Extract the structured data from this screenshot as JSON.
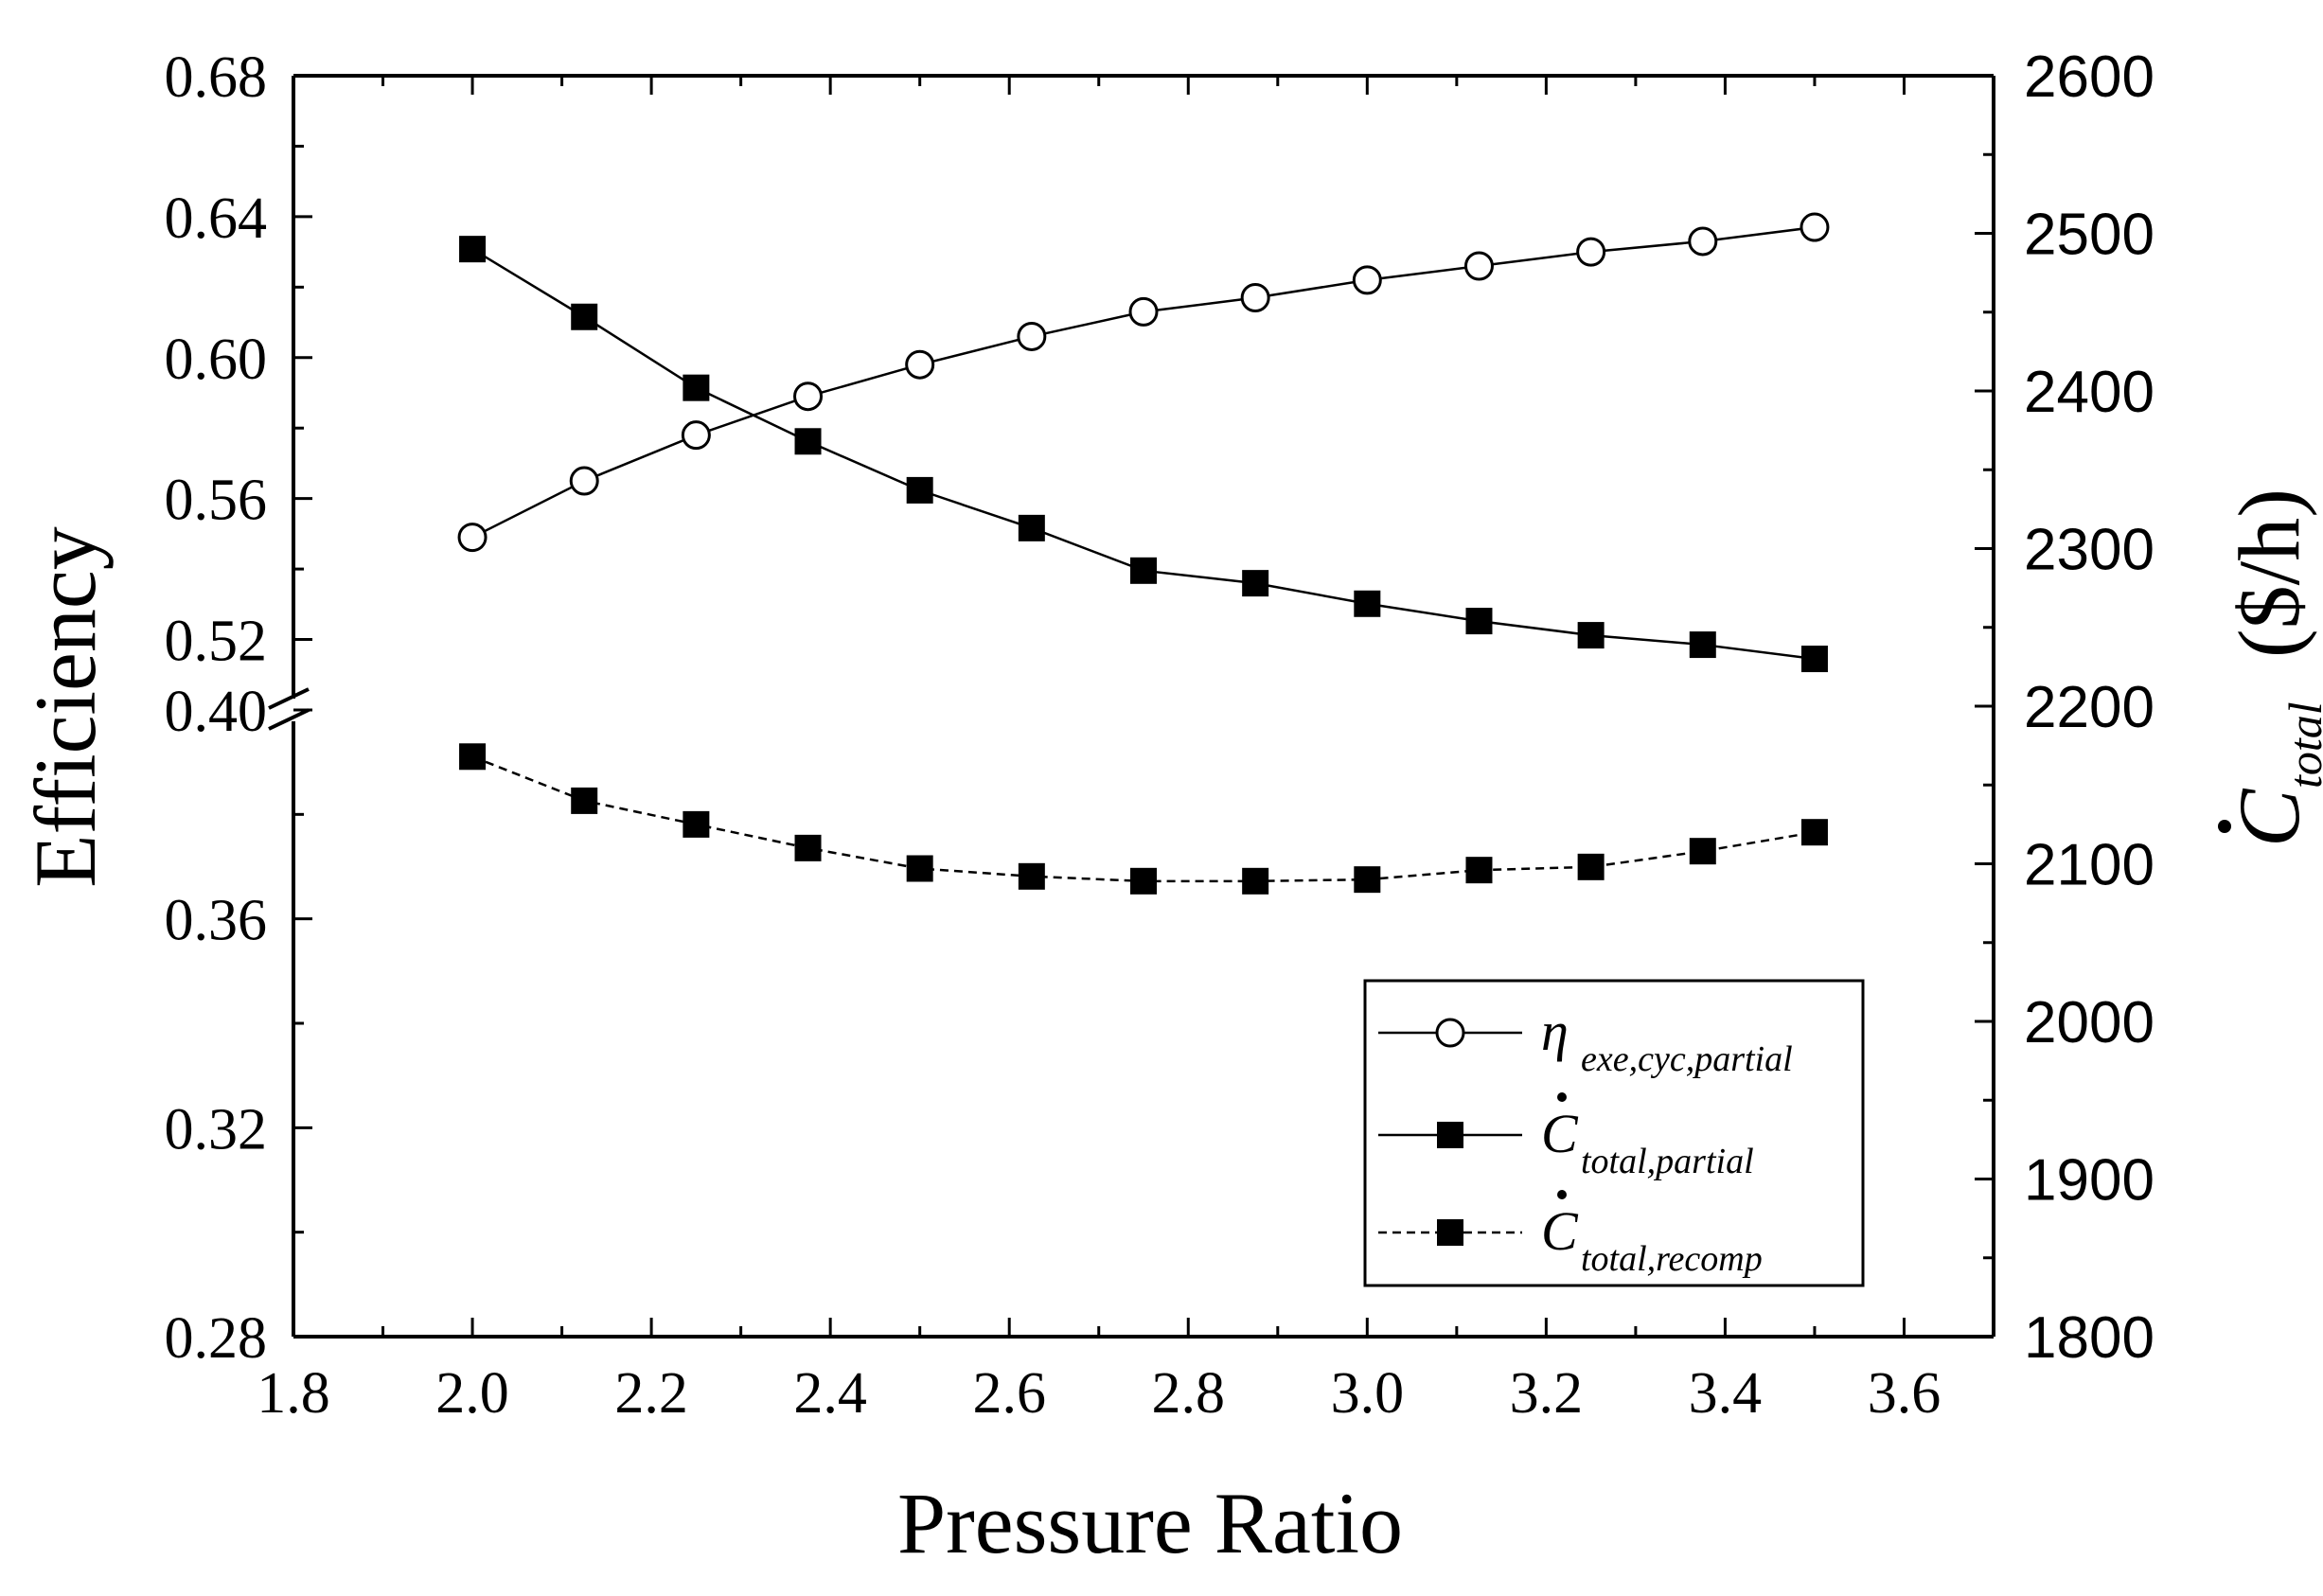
{
  "chart_data": {
    "type": "line",
    "title": "",
    "xlabel": "Pressure Ratio",
    "ylabel_left": "Efficiency",
    "ylabel_right": {
      "symbol": "C",
      "subscript": "total",
      "unit": "($/h)"
    },
    "xlim": [
      1.8,
      3.7
    ],
    "x_ticks": [
      "1.8",
      "2.0",
      "2.2",
      "2.4",
      "2.6",
      "2.8",
      "3.0",
      "3.2",
      "3.4",
      "3.6"
    ],
    "y_left_broken_axis": true,
    "y_left_upper_range": [
      0.5,
      0.68
    ],
    "y_left_upper_ticks": [
      "0.68",
      "0.64",
      "0.60",
      "0.56",
      "0.52"
    ],
    "y_left_lower_range": [
      0.28,
      0.4
    ],
    "y_left_lower_ticks": [
      "0.40",
      "0.36",
      "0.32",
      "0.28"
    ],
    "y_right_range": [
      1800,
      2600
    ],
    "y_right_ticks": [
      "2600",
      "2500",
      "2400",
      "2300",
      "2200",
      "2100",
      "2000",
      "1900",
      "1800"
    ],
    "x": [
      2.0,
      2.125,
      2.25,
      2.375,
      2.5,
      2.625,
      2.75,
      2.875,
      3.0,
      3.125,
      3.25,
      3.375,
      3.5
    ],
    "series": [
      {
        "name": "eta_exe_cyc_partial",
        "legend_symbol": "η",
        "legend_subscript": "exe,cyc,partial",
        "axis": "left",
        "marker": "open-circle",
        "line": "solid",
        "values": [
          0.549,
          0.565,
          0.578,
          0.589,
          0.598,
          0.606,
          0.613,
          0.617,
          0.622,
          0.626,
          0.63,
          0.633,
          0.637
        ]
      },
      {
        "name": "C_total_partial",
        "legend_symbol": "C",
        "legend_subscript": "total,partial",
        "axis": "right",
        "marker": "filled-square",
        "line": "solid",
        "values": [
          2490,
          2447,
          2402,
          2368,
          2337,
          2313,
          2286,
          2278,
          2265,
          2254,
          2245,
          2239,
          2230
        ]
      },
      {
        "name": "C_total_recomp",
        "legend_symbol": "C",
        "legend_subscript": "total,recomp",
        "axis": "right",
        "marker": "filled-square",
        "line": "dashed",
        "values": [
          2168,
          2140,
          2125,
          2110,
          2097,
          2092,
          2089,
          2089,
          2090,
          2096,
          2098,
          2108,
          2120
        ]
      }
    ],
    "legend_position": "bottom-right"
  }
}
